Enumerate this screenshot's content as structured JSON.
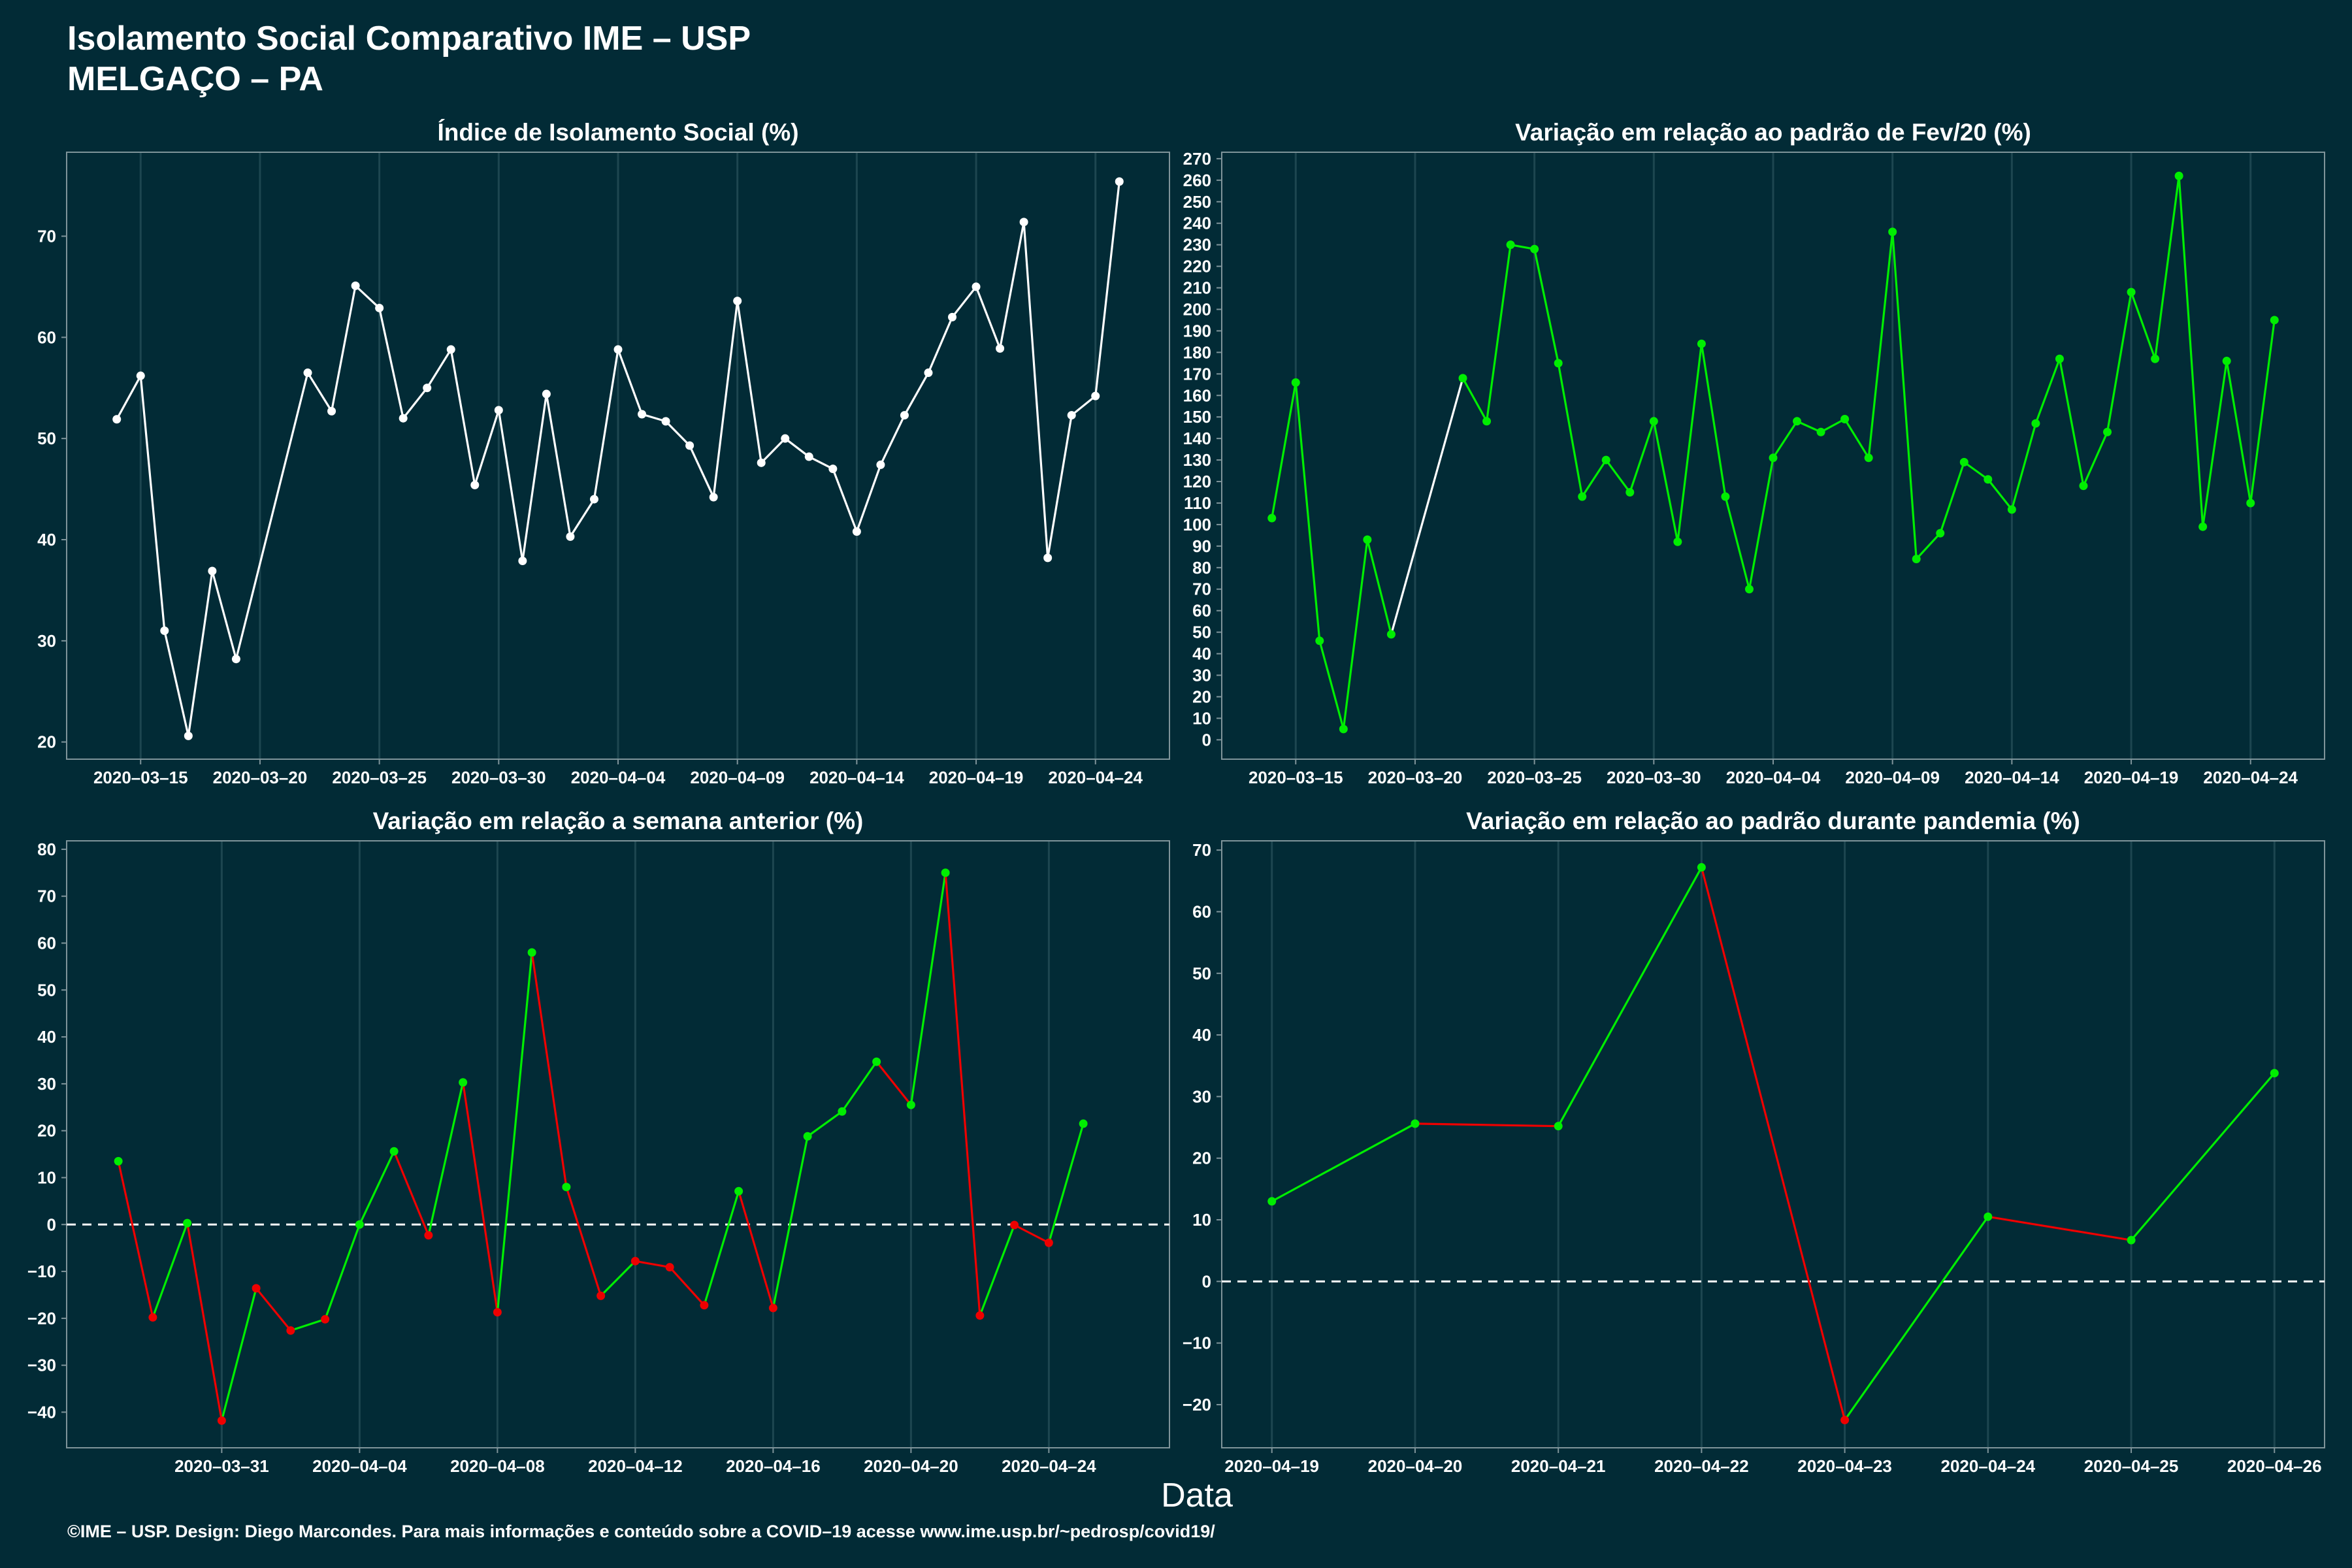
{
  "header": {
    "title": "Isolamento Social Comparativo IME – USP",
    "subtitle": "MELGAÇO – PA"
  },
  "xlabel": "Data",
  "footer": "©IME – USP. Design: Diego Marcondes. Para mais informações e conteúdo sobre a COVID–19 acesse www.ime.usp.br/~pedrosp/covid19/",
  "colors": {
    "background": "#022b36",
    "white": "#ffffff",
    "green": "#00ee00",
    "red": "#ee0000",
    "grid": "#1d4650",
    "axis": "#7f949a"
  },
  "chart_data": [
    {
      "type": "line",
      "title": "Índice de Isolamento Social (%)",
      "x_start": "2020-03-14",
      "ylim": [
        18.3,
        78.3
      ],
      "yticks": [
        20,
        30,
        40,
        50,
        60,
        70
      ],
      "xticks": [
        {
          "label": "2020–03–15",
          "x": 1
        },
        {
          "label": "2020–03–20",
          "x": 6
        },
        {
          "label": "2020–03–25",
          "x": 11
        },
        {
          "label": "2020–03–30",
          "x": 16
        },
        {
          "label": "2020–04–04",
          "x": 21
        },
        {
          "label": "2020–04–09",
          "x": 26
        },
        {
          "label": "2020–04–14",
          "x": 31
        },
        {
          "label": "2020–04–19",
          "x": 36
        },
        {
          "label": "2020–04–24",
          "x": 41
        }
      ],
      "series": [
        {
          "x": [
            0,
            1,
            2,
            3,
            4,
            5,
            6,
            8,
            9,
            10,
            11,
            12,
            13,
            14,
            15,
            16,
            17,
            18,
            19,
            20,
            21,
            22,
            23,
            24,
            25,
            26,
            27,
            28,
            29,
            30,
            31,
            32,
            33,
            34,
            35,
            36,
            37,
            38,
            39,
            40,
            41,
            42
          ],
          "y": [
            51.9,
            56.2,
            31.0,
            20.6,
            36.9,
            28.2,
            null,
            56.5,
            52.7,
            65.1,
            62.9,
            52.0,
            55.0,
            58.8,
            45.4,
            52.8,
            37.9,
            54.4,
            40.3,
            44.0,
            58.8,
            52.4,
            51.7,
            49.3,
            44.2,
            63.6,
            47.6,
            50.0,
            48.2,
            47.0,
            40.8,
            47.4,
            52.3,
            56.5,
            62.0,
            65.0,
            58.9,
            71.4,
            38.2,
            52.3,
            54.2,
            75.4
          ]
        }
      ],
      "colorMode": "white"
    },
    {
      "type": "line",
      "title": "Variação em relação ao padrão de Fev/20 (%)",
      "ylim": [
        -9.0,
        273.0
      ],
      "yticks": [
        0,
        10,
        20,
        30,
        40,
        50,
        60,
        70,
        80,
        90,
        100,
        110,
        120,
        130,
        140,
        150,
        160,
        170,
        180,
        190,
        200,
        210,
        220,
        230,
        240,
        250,
        260,
        270
      ],
      "xticks": [
        {
          "label": "2020–03–15",
          "x": 1
        },
        {
          "label": "2020–03–20",
          "x": 6
        },
        {
          "label": "2020–03–25",
          "x": 11
        },
        {
          "label": "2020–03–30",
          "x": 16
        },
        {
          "label": "2020–04–04",
          "x": 21
        },
        {
          "label": "2020–04–09",
          "x": 26
        },
        {
          "label": "2020–04–14",
          "x": 31
        },
        {
          "label": "2020–04–19",
          "x": 36
        },
        {
          "label": "2020–04–24",
          "x": 41
        }
      ],
      "series": [
        {
          "x": [
            0,
            1,
            2,
            3,
            4,
            5,
            8,
            9,
            10,
            11,
            12,
            13,
            14,
            15,
            16,
            17,
            18,
            19,
            20,
            21,
            22,
            23,
            24,
            25,
            26,
            27,
            28,
            29,
            30,
            31,
            32,
            33,
            34,
            35,
            36,
            37,
            38,
            39,
            40,
            41,
            42
          ],
          "y": [
            103,
            166,
            46,
            5,
            93,
            49,
            168,
            148,
            230,
            228,
            175,
            113,
            130,
            115,
            148,
            92,
            184,
            113,
            70,
            131,
            148,
            143,
            149,
            131,
            236,
            84,
            96,
            129,
            121,
            107,
            147,
            177,
            118,
            143,
            208,
            177,
            262,
            99,
            176,
            110,
            195
          ]
        }
      ],
      "colorMode": "fev"
    },
    {
      "type": "line",
      "title": "Variação em relação a semana anterior (%)",
      "ylim": [
        -47.6,
        81.8
      ],
      "yticks": [
        -40,
        -30,
        -20,
        -10,
        0,
        10,
        20,
        30,
        40,
        50,
        60,
        70,
        80
      ],
      "zero_line": true,
      "xticks": [
        {
          "label": "2020–03–31",
          "x": 3
        },
        {
          "label": "2020–04–04",
          "x": 7
        },
        {
          "label": "2020–04–08",
          "x": 11
        },
        {
          "label": "2020–04–12",
          "x": 15
        },
        {
          "label": "2020–04–16",
          "x": 19
        },
        {
          "label": "2020–04–20",
          "x": 23
        },
        {
          "label": "2020–04–24",
          "x": 27
        }
      ],
      "series": [
        {
          "x": [
            0,
            1,
            2,
            3,
            4,
            5,
            6,
            7,
            8,
            9,
            10,
            11,
            12,
            13,
            14,
            15,
            16,
            17,
            18,
            19,
            20,
            21,
            22,
            23,
            24,
            25,
            26,
            27,
            28,
            29
          ],
          "y": [
            13.5,
            -19.8,
            0.3,
            -41.8,
            -13.6,
            -22.6,
            -20.2,
            0.0,
            15.6,
            -2.3,
            30.3,
            -18.7,
            58.0,
            8.0,
            -15.2,
            -7.8,
            -9.1,
            -17.2,
            7.1,
            -17.8,
            18.8,
            24.1,
            34.7,
            25.5,
            75.0,
            -19.4,
            -0.1,
            -3.9,
            21.5,
            null
          ]
        }
      ],
      "colorMode": "segment"
    },
    {
      "type": "line",
      "title": "Variação em relação ao padrão durante pandemia (%)",
      "ylim": [
        -27.0,
        71.5
      ],
      "yticks": [
        -20,
        -10,
        0,
        10,
        20,
        30,
        40,
        50,
        60,
        70
      ],
      "zero_line": true,
      "xticks": [
        {
          "label": "2020–04–19",
          "x": 0
        },
        {
          "label": "2020–04–20",
          "x": 1
        },
        {
          "label": "2020–04–21",
          "x": 2
        },
        {
          "label": "2020–04–22",
          "x": 3
        },
        {
          "label": "2020–04–23",
          "x": 4
        },
        {
          "label": "2020–04–24",
          "x": 5
        },
        {
          "label": "2020–04–25",
          "x": 6
        },
        {
          "label": "2020–04–26",
          "x": 7
        }
      ],
      "series": [
        {
          "x": [
            0,
            1,
            2,
            3,
            4,
            5,
            6,
            7
          ],
          "y": [
            13.0,
            25.6,
            25.2,
            67.2,
            -22.5,
            10.5,
            6.7,
            33.8
          ]
        }
      ],
      "colorMode": "segment"
    }
  ]
}
